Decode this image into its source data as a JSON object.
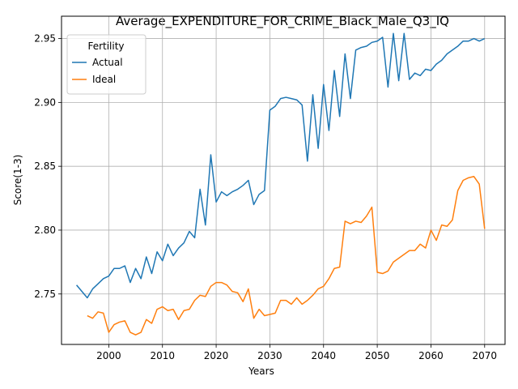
{
  "chart_data": {
    "type": "line",
    "title": "Average_EXPENDITURE_FOR_CRIME_Black_Male_Q3_IQ",
    "xlabel": "Years",
    "ylabel": "Score(1-3)",
    "xlim": [
      1991.2,
      2073.8
    ],
    "ylim": [
      2.7105,
      2.9675
    ],
    "xticks": [
      2000,
      2010,
      2020,
      2030,
      2040,
      2050,
      2060,
      2070
    ],
    "yticks": [
      2.75,
      2.8,
      2.85,
      2.9,
      2.95
    ],
    "ytick_labels": [
      "2.75",
      "2.80",
      "2.85",
      "2.90",
      "2.95"
    ],
    "grid": true,
    "legend": {
      "title": "Fertility",
      "placement": "top-left"
    },
    "series": [
      {
        "name": "Actual",
        "color": "#1f77b4",
        "x": [
          1994,
          1995,
          1996,
          1997,
          1998,
          1999,
          2000,
          2001,
          2002,
          2003,
          2004,
          2005,
          2006,
          2007,
          2008,
          2009,
          2010,
          2011,
          2012,
          2013,
          2014,
          2015,
          2016,
          2017,
          2018,
          2019,
          2020,
          2021,
          2022,
          2023,
          2024,
          2025,
          2026,
          2027,
          2028,
          2029,
          2030,
          2031,
          2032,
          2033,
          2034,
          2035,
          2036,
          2037,
          2038,
          2039,
          2040,
          2041,
          2042,
          2043,
          2044,
          2045,
          2046,
          2047,
          2048,
          2049,
          2050,
          2051,
          2052,
          2053,
          2054,
          2055,
          2056,
          2057,
          2058,
          2059,
          2060,
          2061,
          2062,
          2063,
          2064,
          2065,
          2066,
          2067,
          2068,
          2069,
          2070
        ],
        "y": [
          2.757,
          2.752,
          2.747,
          2.754,
          2.758,
          2.762,
          2.764,
          2.77,
          2.77,
          2.772,
          2.759,
          2.77,
          2.762,
          2.779,
          2.766,
          2.783,
          2.776,
          2.789,
          2.78,
          2.786,
          2.79,
          2.799,
          2.794,
          2.832,
          2.804,
          2.859,
          2.822,
          2.83,
          2.827,
          2.83,
          2.832,
          2.835,
          2.839,
          2.82,
          2.828,
          2.831,
          2.894,
          2.897,
          2.903,
          2.904,
          2.903,
          2.902,
          2.898,
          2.854,
          2.906,
          2.864,
          2.914,
          2.878,
          2.925,
          2.889,
          2.938,
          2.903,
          2.941,
          2.943,
          2.944,
          2.947,
          2.948,
          2.951,
          2.912,
          2.954,
          2.917,
          2.954,
          2.918,
          2.923,
          2.921,
          2.926,
          2.925,
          2.93,
          2.933,
          2.938,
          2.941,
          2.944,
          2.948,
          2.948,
          2.95,
          2.948,
          2.95
        ]
      },
      {
        "name": "Ideal",
        "color": "#ff7f0e",
        "x": [
          1996,
          1997,
          1998,
          1999,
          2000,
          2001,
          2002,
          2003,
          2004,
          2005,
          2006,
          2007,
          2008,
          2009,
          2010,
          2011,
          2012,
          2013,
          2014,
          2015,
          2016,
          2017,
          2018,
          2019,
          2020,
          2021,
          2022,
          2023,
          2024,
          2025,
          2026,
          2027,
          2028,
          2029,
          2030,
          2031,
          2032,
          2033,
          2034,
          2035,
          2036,
          2037,
          2038,
          2039,
          2040,
          2041,
          2042,
          2043,
          2044,
          2045,
          2046,
          2047,
          2048,
          2049,
          2050,
          2051,
          2052,
          2053,
          2054,
          2055,
          2056,
          2057,
          2058,
          2059,
          2060,
          2061,
          2062,
          2063,
          2064,
          2065,
          2066,
          2067,
          2068,
          2069,
          2070
        ],
        "y": [
          2.733,
          2.731,
          2.736,
          2.735,
          2.72,
          2.726,
          2.728,
          2.729,
          2.72,
          2.718,
          2.72,
          2.73,
          2.727,
          2.738,
          2.74,
          2.737,
          2.738,
          2.73,
          2.737,
          2.738,
          2.745,
          2.749,
          2.748,
          2.756,
          2.759,
          2.759,
          2.757,
          2.752,
          2.751,
          2.744,
          2.754,
          2.731,
          2.738,
          2.733,
          2.734,
          2.735,
          2.745,
          2.745,
          2.742,
          2.747,
          2.742,
          2.745,
          2.749,
          2.754,
          2.756,
          2.762,
          2.77,
          2.771,
          2.807,
          2.805,
          2.807,
          2.806,
          2.811,
          2.818,
          2.767,
          2.766,
          2.768,
          2.775,
          2.778,
          2.781,
          2.784,
          2.784,
          2.789,
          2.786,
          2.8,
          2.792,
          2.804,
          2.803,
          2.808,
          2.831,
          2.839,
          2.841,
          2.842,
          2.836,
          2.801
        ]
      }
    ]
  }
}
